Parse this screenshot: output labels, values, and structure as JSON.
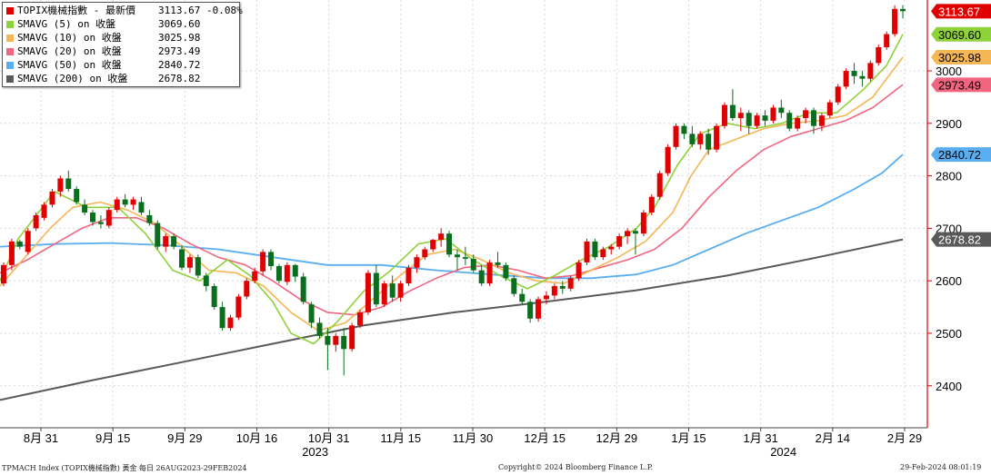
{
  "legend": {
    "rows": [
      {
        "label": "TOPIX機械指數 - 最新價",
        "value": "3113.67",
        "change": "-0.08%",
        "color": "#e00000"
      },
      {
        "label": "SMAVG (5)  on 收盤",
        "value": "3069.60",
        "color": "#8fd13a"
      },
      {
        "label": "SMAVG (10)  on 收盤",
        "value": "3025.98",
        "color": "#f5b656"
      },
      {
        "label": "SMAVG (20)  on 收盤",
        "value": "2973.49",
        "color": "#f06680"
      },
      {
        "label": "SMAVG (50)  on 收盤",
        "value": "2840.72",
        "color": "#5aaef0"
      },
      {
        "label": "SMAVG (200)  on 收盤",
        "value": "2678.82",
        "color": "#595959"
      }
    ]
  },
  "footer": {
    "left": "TPMACH Index (TOPIX機械指數) 黃金  每日 26AUG2023-29FEB2024",
    "center": "Copyright© 2024 Bloomberg Finance L.P.",
    "right": "29-Feb-2024 08:01:19"
  },
  "chart_data": {
    "type": "candlestick",
    "y_ticks": [
      2400,
      2500,
      2600,
      2700,
      2800,
      2900,
      3000
    ],
    "y_range": [
      2320,
      3135
    ],
    "x_ticks": [
      "8月 31",
      "9月 15",
      "9月 29",
      "10月 16",
      "10月 31",
      "11月 15",
      "11月 30",
      "12月 15",
      "12月 29",
      "1月 15",
      "1月 31",
      "2月 14",
      "2月 29"
    ],
    "x_years": [
      "2023",
      "2024"
    ],
    "last_labels": [
      {
        "text": "3113.67",
        "value": 3113.67,
        "color": "#e00000",
        "fg": "#ffffff"
      },
      {
        "text": "3069.60",
        "value": 3069.6,
        "color": "#8fd13a",
        "fg": "#000000"
      },
      {
        "text": "3025.98",
        "value": 3025.98,
        "color": "#f5b656",
        "fg": "#000000"
      },
      {
        "text": "2973.49",
        "value": 2973.49,
        "color": "#f06680",
        "fg": "#000000"
      },
      {
        "text": "2840.72",
        "value": 2840.72,
        "color": "#5aaef0",
        "fg": "#000000"
      },
      {
        "text": "2678.82",
        "value": 2678.82,
        "color": "#595959",
        "fg": "#ffffff"
      }
    ],
    "up_color": "#e00000",
    "down_color": "#0b6e1e",
    "ohlc": [
      [
        2595,
        2635,
        2590,
        2630
      ],
      [
        2630,
        2680,
        2620,
        2675
      ],
      [
        2675,
        2678,
        2660,
        2665
      ],
      [
        2655,
        2700,
        2650,
        2695
      ],
      [
        2700,
        2730,
        2695,
        2725
      ],
      [
        2720,
        2750,
        2715,
        2745
      ],
      [
        2745,
        2775,
        2740,
        2770
      ],
      [
        2770,
        2800,
        2760,
        2795
      ],
      [
        2795,
        2810,
        2770,
        2775
      ],
      [
        2775,
        2780,
        2745,
        2750
      ],
      [
        2745,
        2755,
        2725,
        2730
      ],
      [
        2730,
        2735,
        2705,
        2712
      ],
      [
        2712,
        2725,
        2700,
        2708
      ],
      [
        2705,
        2740,
        2700,
        2735
      ],
      [
        2735,
        2760,
        2730,
        2755
      ],
      [
        2755,
        2765,
        2740,
        2745
      ],
      [
        2745,
        2760,
        2735,
        2755
      ],
      [
        2750,
        2760,
        2725,
        2730
      ],
      [
        2725,
        2735,
        2705,
        2710
      ],
      [
        2710,
        2715,
        2660,
        2665
      ],
      [
        2665,
        2690,
        2655,
        2685
      ],
      [
        2685,
        2690,
        2660,
        2665
      ],
      [
        2660,
        2668,
        2620,
        2625
      ],
      [
        2625,
        2650,
        2615,
        2645
      ],
      [
        2645,
        2650,
        2605,
        2610
      ],
      [
        2610,
        2615,
        2580,
        2590
      ],
      [
        2590,
        2595,
        2545,
        2550
      ],
      [
        2550,
        2560,
        2505,
        2510
      ],
      [
        2510,
        2535,
        2505,
        2530
      ],
      [
        2530,
        2575,
        2525,
        2570
      ],
      [
        2570,
        2605,
        2565,
        2600
      ],
      [
        2600,
        2625,
        2595,
        2618
      ],
      [
        2618,
        2660,
        2610,
        2655
      ],
      [
        2655,
        2660,
        2620,
        2628
      ],
      [
        2628,
        2632,
        2595,
        2600
      ],
      [
        2598,
        2635,
        2592,
        2630
      ],
      [
        2630,
        2632,
        2598,
        2608
      ],
      [
        2608,
        2615,
        2555,
        2560
      ],
      [
        2555,
        2560,
        2510,
        2520
      ],
      [
        2520,
        2530,
        2490,
        2495
      ],
      [
        2495,
        2510,
        2430,
        2478
      ],
      [
        2478,
        2500,
        2465,
        2495
      ],
      [
        2495,
        2510,
        2420,
        2470
      ],
      [
        2470,
        2520,
        2465,
        2515
      ],
      [
        2515,
        2545,
        2510,
        2540
      ],
      [
        2540,
        2620,
        2535,
        2615
      ],
      [
        2615,
        2630,
        2550,
        2555
      ],
      [
        2555,
        2600,
        2550,
        2595
      ],
      [
        2595,
        2610,
        2560,
        2568
      ],
      [
        2568,
        2600,
        2560,
        2595
      ],
      [
        2595,
        2630,
        2590,
        2625
      ],
      [
        2625,
        2650,
        2615,
        2645
      ],
      [
        2645,
        2665,
        2640,
        2660
      ],
      [
        2660,
        2680,
        2655,
        2678
      ],
      [
        2678,
        2700,
        2665,
        2690
      ],
      [
        2690,
        2695,
        2645,
        2650
      ],
      [
        2650,
        2660,
        2620,
        2645
      ],
      [
        2645,
        2665,
        2630,
        2642
      ],
      [
        2642,
        2650,
        2615,
        2620
      ],
      [
        2620,
        2630,
        2590,
        2595
      ],
      [
        2595,
        2640,
        2590,
        2635
      ],
      [
        2635,
        2655,
        2625,
        2630
      ],
      [
        2630,
        2635,
        2600,
        2605
      ],
      [
        2605,
        2610,
        2570,
        2575
      ],
      [
        2575,
        2585,
        2555,
        2560
      ],
      [
        2560,
        2565,
        2520,
        2528
      ],
      [
        2528,
        2570,
        2522,
        2565
      ],
      [
        2565,
        2580,
        2555,
        2572
      ],
      [
        2572,
        2595,
        2565,
        2590
      ],
      [
        2590,
        2600,
        2575,
        2585
      ],
      [
        2585,
        2610,
        2580,
        2605
      ],
      [
        2605,
        2640,
        2600,
        2635
      ],
      [
        2635,
        2680,
        2630,
        2675
      ],
      [
        2675,
        2680,
        2640,
        2645
      ],
      [
        2645,
        2665,
        2640,
        2660
      ],
      [
        2660,
        2670,
        2650,
        2665
      ],
      [
        2665,
        2690,
        2660,
        2685
      ],
      [
        2685,
        2700,
        2670,
        2695
      ],
      [
        2695,
        2700,
        2650,
        2690
      ],
      [
        2690,
        2735,
        2685,
        2730
      ],
      [
        2730,
        2765,
        2725,
        2760
      ],
      [
        2760,
        2810,
        2755,
        2805
      ],
      [
        2805,
        2860,
        2800,
        2855
      ],
      [
        2855,
        2900,
        2850,
        2895
      ],
      [
        2895,
        2900,
        2870,
        2880
      ],
      [
        2880,
        2895,
        2855,
        2860
      ],
      [
        2860,
        2885,
        2850,
        2880
      ],
      [
        2880,
        2890,
        2840,
        2850
      ],
      [
        2850,
        2900,
        2845,
        2895
      ],
      [
        2895,
        2940,
        2890,
        2935
      ],
      [
        2935,
        2965,
        2905,
        2910
      ],
      [
        2910,
        2930,
        2885,
        2920
      ],
      [
        2920,
        2925,
        2880,
        2895
      ],
      [
        2895,
        2920,
        2890,
        2915
      ],
      [
        2915,
        2925,
        2895,
        2905
      ],
      [
        2905,
        2935,
        2900,
        2930
      ],
      [
        2930,
        2945,
        2910,
        2920
      ],
      [
        2920,
        2925,
        2885,
        2890
      ],
      [
        2890,
        2915,
        2885,
        2910
      ],
      [
        2910,
        2930,
        2900,
        2925
      ],
      [
        2925,
        2930,
        2880,
        2895
      ],
      [
        2895,
        2920,
        2885,
        2915
      ],
      [
        2915,
        2945,
        2910,
        2940
      ],
      [
        2940,
        2975,
        2935,
        2970
      ],
      [
        2970,
        3005,
        2965,
        3000
      ],
      [
        3000,
        3015,
        2975,
        2990
      ],
      [
        2990,
        3000,
        2970,
        2985
      ],
      [
        2985,
        3020,
        2980,
        3015
      ],
      [
        3015,
        3050,
        3010,
        3045
      ],
      [
        3045,
        3075,
        3040,
        3070
      ],
      [
        3070,
        3125,
        3065,
        3118
      ],
      [
        3118,
        3125,
        3100,
        3113.67
      ]
    ],
    "sma5": [
      [
        0,
        2600
      ],
      [
        20,
        2680
      ],
      [
        60,
        2770
      ],
      [
        95,
        2740
      ],
      [
        130,
        2740
      ],
      [
        160,
        2690
      ],
      [
        190,
        2620
      ],
      [
        220,
        2600
      ],
      [
        250,
        2640
      ],
      [
        275,
        2610
      ],
      [
        300,
        2560
      ],
      [
        320,
        2500
      ],
      [
        345,
        2480
      ],
      [
        370,
        2520
      ],
      [
        400,
        2580
      ],
      [
        430,
        2620
      ],
      [
        460,
        2670
      ],
      [
        490,
        2680
      ],
      [
        520,
        2640
      ],
      [
        550,
        2610
      ],
      [
        580,
        2585
      ],
      [
        610,
        2610
      ],
      [
        640,
        2640
      ],
      [
        670,
        2665
      ],
      [
        700,
        2700
      ],
      [
        720,
        2740
      ],
      [
        745,
        2820
      ],
      [
        770,
        2880
      ],
      [
        800,
        2900
      ],
      [
        830,
        2890
      ],
      [
        860,
        2900
      ],
      [
        890,
        2920
      ],
      [
        920,
        2920
      ],
      [
        950,
        2965
      ],
      [
        975,
        3010
      ],
      [
        993,
        3069.6
      ]
    ],
    "sma10": [
      [
        0,
        2590
      ],
      [
        25,
        2640
      ],
      [
        55,
        2700
      ],
      [
        80,
        2740
      ],
      [
        110,
        2750
      ],
      [
        140,
        2735
      ],
      [
        170,
        2710
      ],
      [
        200,
        2665
      ],
      [
        230,
        2620
      ],
      [
        260,
        2615
      ],
      [
        290,
        2590
      ],
      [
        320,
        2540
      ],
      [
        350,
        2505
      ],
      [
        380,
        2520
      ],
      [
        410,
        2565
      ],
      [
        440,
        2610
      ],
      [
        470,
        2650
      ],
      [
        500,
        2660
      ],
      [
        530,
        2640
      ],
      [
        560,
        2615
      ],
      [
        590,
        2600
      ],
      [
        620,
        2595
      ],
      [
        650,
        2620
      ],
      [
        680,
        2645
      ],
      [
        710,
        2675
      ],
      [
        740,
        2730
      ],
      [
        760,
        2800
      ],
      [
        780,
        2850
      ],
      [
        810,
        2870
      ],
      [
        840,
        2890
      ],
      [
        870,
        2900
      ],
      [
        900,
        2905
      ],
      [
        930,
        2915
      ],
      [
        960,
        2950
      ],
      [
        993,
        3025.98
      ]
    ],
    "sma20": [
      [
        0,
        2615
      ],
      [
        30,
        2640
      ],
      [
        60,
        2670
      ],
      [
        90,
        2700
      ],
      [
        120,
        2720
      ],
      [
        150,
        2720
      ],
      [
        180,
        2700
      ],
      [
        210,
        2670
      ],
      [
        240,
        2645
      ],
      [
        270,
        2630
      ],
      [
        300,
        2600
      ],
      [
        330,
        2565
      ],
      [
        360,
        2540
      ],
      [
        390,
        2535
      ],
      [
        420,
        2550
      ],
      [
        450,
        2580
      ],
      [
        480,
        2605
      ],
      [
        510,
        2625
      ],
      [
        540,
        2630
      ],
      [
        570,
        2620
      ],
      [
        600,
        2605
      ],
      [
        630,
        2610
      ],
      [
        660,
        2625
      ],
      [
        690,
        2640
      ],
      [
        720,
        2660
      ],
      [
        750,
        2700
      ],
      [
        780,
        2760
      ],
      [
        810,
        2810
      ],
      [
        840,
        2850
      ],
      [
        870,
        2875
      ],
      [
        900,
        2890
      ],
      [
        930,
        2905
      ],
      [
        960,
        2930
      ],
      [
        993,
        2973.49
      ]
    ],
    "sma50": [
      [
        0,
        2665
      ],
      [
        60,
        2670
      ],
      [
        120,
        2672
      ],
      [
        180,
        2668
      ],
      [
        240,
        2660
      ],
      [
        300,
        2645
      ],
      [
        360,
        2630
      ],
      [
        420,
        2630
      ],
      [
        480,
        2620
      ],
      [
        540,
        2612
      ],
      [
        600,
        2605
      ],
      [
        650,
        2605
      ],
      [
        700,
        2612
      ],
      [
        740,
        2630
      ],
      [
        780,
        2660
      ],
      [
        820,
        2690
      ],
      [
        860,
        2715
      ],
      [
        900,
        2740
      ],
      [
        940,
        2775
      ],
      [
        970,
        2805
      ],
      [
        993,
        2840.72
      ]
    ],
    "sma200": [
      [
        0,
        2373
      ],
      [
        100,
        2410
      ],
      [
        200,
        2445
      ],
      [
        300,
        2480
      ],
      [
        400,
        2515
      ],
      [
        500,
        2540
      ],
      [
        600,
        2560
      ],
      [
        700,
        2582
      ],
      [
        800,
        2610
      ],
      [
        900,
        2645
      ],
      [
        993,
        2678.82
      ]
    ]
  }
}
